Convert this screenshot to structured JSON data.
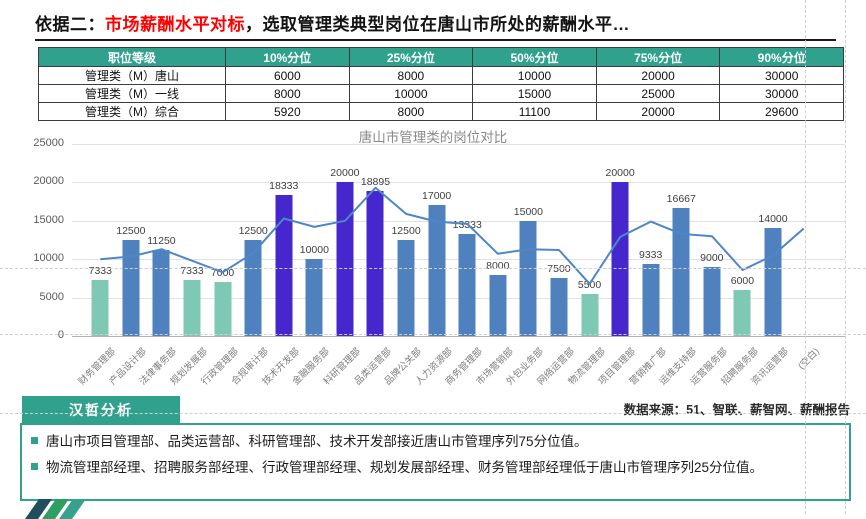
{
  "slide": {
    "title": {
      "prefix": "依据二：",
      "highlight": "市场薪酬水平对标",
      "suffix": "，选取管理类典型岗位在唐山市所处的薪酬水平…"
    }
  },
  "table": {
    "headers": [
      "职位等级",
      "10%分位",
      "25%分位",
      "50%分位",
      "75%分位",
      "90%分位"
    ],
    "rows": [
      {
        "label": "管理类（M）唐山",
        "values": [
          "6000",
          "8000",
          "10000",
          "20000",
          "30000"
        ]
      },
      {
        "label": "管理类（M）一线",
        "values": [
          "8000",
          "10000",
          "15000",
          "25000",
          "30000"
        ]
      },
      {
        "label": "管理类（M）综合",
        "values": [
          "5920",
          "8000",
          "11100",
          "20000",
          "29600"
        ]
      }
    ]
  },
  "chart_data": {
    "type": "bar",
    "title": "唐山市管理类的岗位对比",
    "categories": [
      "财务管理部",
      "产品设计部",
      "法律事务部",
      "规划发展部",
      "行政管理部",
      "合规审计部",
      "技术开发部",
      "金融服务部",
      "科研管理部",
      "品类运营部",
      "品牌公关部",
      "人力资源部",
      "商务管理部",
      "市场营销部",
      "外包业务部",
      "网络运营部",
      "物流管理部",
      "项目管理部",
      "营销推广部",
      "运维支持部",
      "运营服务部",
      "招聘服务部",
      "资讯运营部",
      "(空白)"
    ],
    "series": [
      {
        "type": "bar",
        "values": [
          7333,
          12500,
          11250,
          7333,
          7000,
          12500,
          18333,
          10000,
          20000,
          18895,
          12500,
          17000,
          13333,
          8000,
          15000,
          7500,
          5500,
          20000,
          9333,
          16667,
          9000,
          6000,
          14000,
          null
        ],
        "color_roles": [
          "teal",
          "blue",
          "blue",
          "teal",
          "teal",
          "blue",
          "purple",
          "blue",
          "purple",
          "purple",
          "blue",
          "blue",
          "blue",
          "blue",
          "blue",
          "blue",
          "teal",
          "purple",
          "blue",
          "blue",
          "blue",
          "teal",
          "blue",
          null
        ]
      },
      {
        "type": "line",
        "values": [
          10000,
          10350,
          11300,
          9800,
          8300,
          10800,
          15300,
          14200,
          15000,
          19300,
          15900,
          14900,
          14600,
          10700,
          11300,
          11200,
          6800,
          12900,
          14900,
          13300,
          13000,
          8600,
          10500,
          14000
        ],
        "color": "#4d87c7"
      }
    ],
    "palette": {
      "blue": "#4e81bd",
      "teal": "#7ec8b4",
      "purple": "#4527cd"
    },
    "xlabel": "",
    "ylabel": "",
    "ylim": [
      0,
      25000
    ],
    "yticks": [
      0,
      5000,
      10000,
      15000,
      20000,
      25000
    ],
    "grid": true,
    "legend": "none"
  },
  "analysis": {
    "badge_label": "汉哲分析",
    "source": "数据来源：51、智联、薪智网、薪酬报告",
    "bullets": [
      "唐山市项目管理部、品类运营部、科研管理部、技术开发部接近唐山市管理序列75分位值。",
      "物流管理部经理、招聘服务部经理、行政管理部经理、规划发展部经理、财务管理部经理低于唐山市管理序列25分位值。"
    ]
  },
  "icons": {
    "bullet": "square-bullet-icon",
    "logo": "company-logo"
  },
  "colors": {
    "accent_teal": "#2fa18c",
    "title_red": "#fe0000",
    "bar_blue": "#4e81bd",
    "bar_teal": "#7ec8b4",
    "bar_purple": "#4527cd",
    "line_blue": "#4d87c7"
  }
}
